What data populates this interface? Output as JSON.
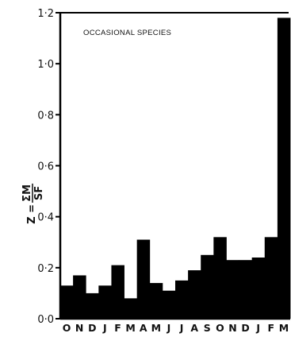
{
  "chart_data": {
    "type": "bar",
    "annotation": "OCCASIONAL   SPECIES",
    "ylabel": {
      "lhs": "Z =",
      "numerator": "ΣM",
      "denominator": "SF"
    },
    "ylim": [
      0,
      1.2
    ],
    "yticks": [
      "0·0",
      "0·2",
      "0·4",
      "0·6",
      "0·8",
      "1·0",
      "1·2"
    ],
    "ytick_values": [
      0,
      0.2,
      0.4,
      0.6,
      0.8,
      1.0,
      1.2
    ],
    "categories": [
      "O",
      "N",
      "D",
      "J",
      "F",
      "M",
      "A",
      "M",
      "J",
      "J",
      "A",
      "S",
      "O",
      "N",
      "D",
      "J",
      "F",
      "M"
    ],
    "values": [
      0.13,
      0.17,
      0.1,
      0.13,
      0.21,
      0.08,
      0.31,
      0.14,
      0.11,
      0.15,
      0.19,
      0.25,
      0.32,
      0.23,
      0.23,
      0.24,
      0.32,
      1.18
    ],
    "bar_color": "#000000"
  }
}
